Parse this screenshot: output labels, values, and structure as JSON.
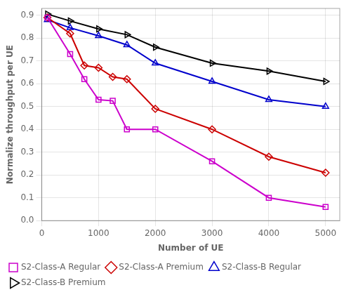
{
  "chart_data": {
    "type": "line",
    "xlabel": "Number of UE",
    "ylabel": "Normalize throughput per UE",
    "series": [
      {
        "name": "S2-Class-A Regular",
        "color": "#CC00CC",
        "marker": "square",
        "x": [
          100,
          500,
          750,
          1000,
          1250,
          1500,
          2000,
          3000,
          4000,
          5000
        ],
        "values": [
          0.89,
          0.73,
          0.62,
          0.53,
          0.525,
          0.4,
          0.4,
          0.26,
          0.1,
          0.06
        ]
      },
      {
        "name": "S2-Class-A Premium",
        "color": "#CC0000",
        "marker": "diamond",
        "x": [
          100,
          500,
          750,
          1000,
          1250,
          1500,
          2000,
          3000,
          4000,
          5000
        ],
        "values": [
          0.89,
          0.82,
          0.68,
          0.67,
          0.63,
          0.62,
          0.49,
          0.4,
          0.28,
          0.21
        ]
      },
      {
        "name": "S2-Class-B Regular",
        "color": "#0000CC",
        "marker": "triangle-up",
        "x": [
          100,
          500,
          1000,
          1500,
          2000,
          3000,
          4000,
          5000
        ],
        "values": [
          0.88,
          0.845,
          0.81,
          0.77,
          0.69,
          0.61,
          0.53,
          0.5
        ]
      },
      {
        "name": "S2-Class-B Premium",
        "color": "#000000",
        "marker": "triangle-right",
        "x": [
          100,
          500,
          1000,
          1500,
          2000,
          3000,
          4000,
          5000
        ],
        "values": [
          0.905,
          0.875,
          0.84,
          0.815,
          0.76,
          0.69,
          0.655,
          0.61
        ]
      }
    ],
    "xlim": [
      0,
      5250
    ],
    "ylim": [
      0,
      0.93
    ],
    "xticks": [
      0,
      1000,
      2000,
      3000,
      4000,
      5000
    ],
    "yticks": [
      {
        "value": 0,
        "label": "0.0"
      },
      0.1,
      0.2,
      0.3,
      0.4,
      0.5,
      0.6,
      0.7,
      0.8,
      0.9
    ],
    "grid": true,
    "legend": "lower left"
  }
}
